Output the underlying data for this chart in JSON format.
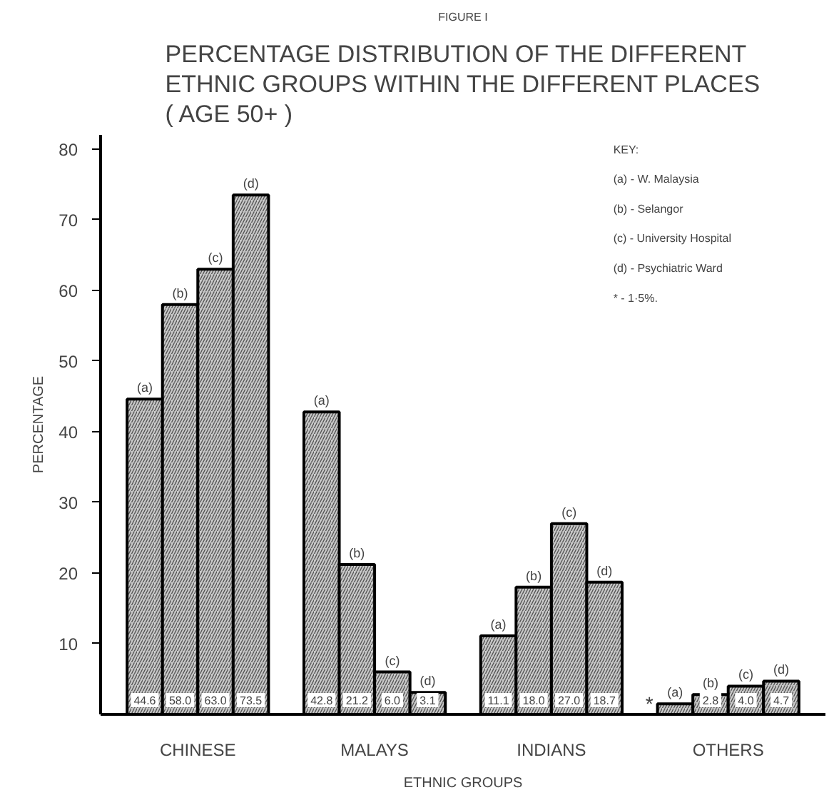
{
  "chart_data": {
    "type": "bar",
    "subtitle": "FIGURE I",
    "title": "PERCENTAGE DISTRIBUTION OF THE DIFFERENT\nETHNIC GROUPS WITHIN THE DIFFERENT PLACES\n( AGE 50+ )",
    "xlabel": "ETHNIC GROUPS",
    "ylabel": "PERCENTAGE",
    "categories": [
      "CHINESE",
      "MALAYS",
      "INDIANS",
      "OTHERS"
    ],
    "series": [
      {
        "name": "(a)",
        "color": "#c8c8c8",
        "values": [
          44.6,
          42.8,
          11.1,
          1.5
        ],
        "value_labels": [
          "44.6",
          "42.8",
          "11.1",
          "*"
        ]
      },
      {
        "name": "(b)",
        "color": "#c8c8c8",
        "values": [
          58.0,
          21.2,
          18.0,
          2.8
        ],
        "value_labels": [
          "58.0",
          "21.2",
          "18.0",
          "2.8"
        ]
      },
      {
        "name": "(c)",
        "color": "#c8c8c8",
        "values": [
          63.0,
          6.0,
          27.0,
          4.0
        ],
        "value_labels": [
          "63.0",
          "6.0",
          "27.0",
          "4.0"
        ]
      },
      {
        "name": "(d)",
        "color": "#c8c8c8",
        "values": [
          73.5,
          3.1,
          18.7,
          4.7
        ],
        "value_labels": [
          "73.5",
          "3.1",
          "18.7",
          "4.7"
        ]
      }
    ],
    "ylim": [
      0,
      82
    ],
    "yticks": [
      10,
      20,
      30,
      40,
      50,
      60,
      70,
      80
    ],
    "grid": false,
    "annotations": [
      "KEY:",
      "(a) - W. Malaysia",
      "(b) - Selangor",
      "(c) - University Hospital",
      "(d) - Psychiatric Ward",
      "* - 1·5%."
    ]
  }
}
